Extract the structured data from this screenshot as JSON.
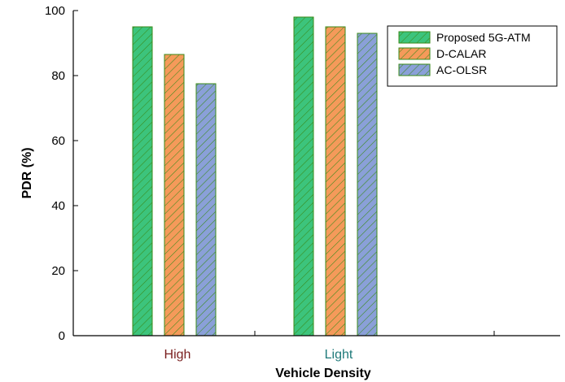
{
  "chart_data": {
    "type": "bar",
    "categories": [
      "High",
      "Light"
    ],
    "category_colors": [
      "#7a1f1f",
      "#1f7a7a"
    ],
    "series": [
      {
        "name": "Proposed 5G-ATM",
        "values": [
          95,
          98
        ],
        "color": "#3cc47c"
      },
      {
        "name": "D-CALAR",
        "values": [
          86.5,
          95
        ],
        "color": "#f59a5a"
      },
      {
        "name": "AC-OLSR",
        "values": [
          77.5,
          93
        ],
        "color": "#8aa0d8"
      }
    ],
    "xlabel": "Vehicle Density",
    "ylabel": "PDR (%)",
    "ylim": [
      0,
      100
    ],
    "yticks": [
      0,
      20,
      40,
      60,
      80,
      100
    ],
    "edge_color": "#3a8a1a",
    "hatch": "diagonal",
    "legend_position": "top-right",
    "grid": false
  }
}
